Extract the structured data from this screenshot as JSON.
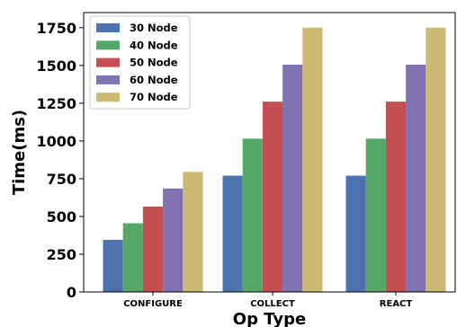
{
  "chart_data": {
    "type": "bar",
    "xlabel": "Op Type",
    "ylabel": "Time(ms)",
    "categories": [
      "CONFIGURE",
      "COLLECT",
      "REACT"
    ],
    "ylim": [
      0,
      1850
    ],
    "yticks": [
      0,
      250,
      500,
      750,
      1000,
      1250,
      1500,
      1750
    ],
    "ytick_labels": [
      "0",
      "250",
      "500",
      "750",
      "1000",
      "1250",
      "1500",
      "1750"
    ],
    "grid": false,
    "legend_position": "top-left",
    "series": [
      {
        "name": "30 Node",
        "color": "#4c72b0",
        "values": [
          345,
          770,
          770
        ]
      },
      {
        "name": "40 Node",
        "color": "#55a868",
        "values": [
          455,
          1015,
          1015
        ]
      },
      {
        "name": "50 Node",
        "color": "#c44e52",
        "values": [
          565,
          1260,
          1260
        ]
      },
      {
        "name": "60 Node",
        "color": "#8172b2",
        "values": [
          685,
          1505,
          1505
        ]
      },
      {
        "name": "70 Node",
        "color": "#ccb974",
        "values": [
          795,
          1750,
          1750
        ]
      }
    ]
  }
}
